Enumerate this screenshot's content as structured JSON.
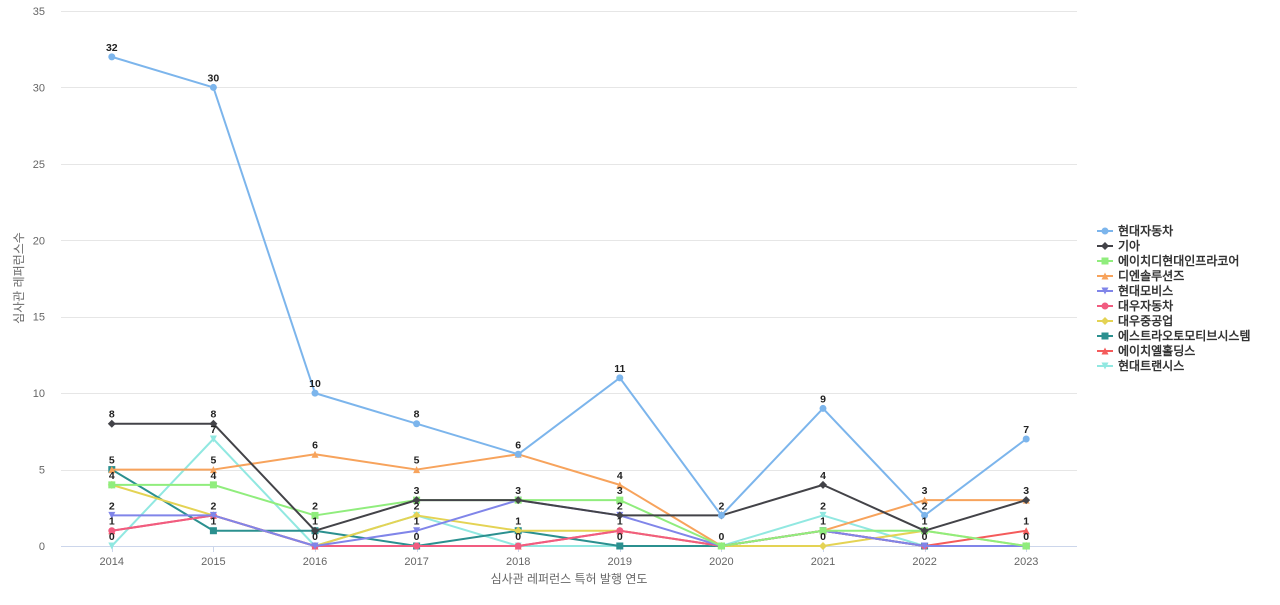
{
  "chart_data": {
    "type": "line",
    "title": "",
    "xlabel": "심사관 레퍼런스 특허 발행 연도",
    "ylabel": "심사관 레퍼런스수",
    "x": [
      "2014",
      "2015",
      "2016",
      "2017",
      "2018",
      "2019",
      "2020",
      "2021",
      "2022",
      "2023"
    ],
    "ylim": [
      0,
      35
    ],
    "yticks": [
      0,
      5,
      10,
      15,
      20,
      25,
      30,
      35
    ],
    "grid": true,
    "legend_position": "right",
    "series": [
      {
        "name": "현대자동차",
        "color": "#7cb5ec",
        "marker": "circle",
        "values": [
          32,
          30,
          10,
          8,
          6,
          11,
          2,
          9,
          2,
          7
        ]
      },
      {
        "name": "기아",
        "color": "#434348",
        "marker": "diamond",
        "values": [
          8,
          8,
          1,
          3,
          3,
          2,
          2,
          4,
          1,
          3
        ]
      },
      {
        "name": "에이치디현대인프라코어",
        "color": "#90ed7d",
        "marker": "square",
        "values": [
          4,
          4,
          2,
          3,
          3,
          3,
          0,
          1,
          1,
          0
        ]
      },
      {
        "name": "디엔솔루션즈",
        "color": "#f7a35c",
        "marker": "triangle",
        "values": [
          5,
          5,
          6,
          5,
          6,
          4,
          0,
          1,
          3,
          3
        ]
      },
      {
        "name": "현대모비스",
        "color": "#8085e9",
        "marker": "triangle-down",
        "values": [
          2,
          2,
          0,
          1,
          3,
          2,
          0,
          1,
          0,
          0
        ]
      },
      {
        "name": "대우자동차",
        "color": "#f15c80",
        "marker": "circle",
        "values": [
          1,
          2,
          0,
          0,
          0,
          1,
          0,
          1,
          0,
          0
        ]
      },
      {
        "name": "대우중공업",
        "color": "#e4d354",
        "marker": "diamond",
        "values": [
          4,
          2,
          0,
          2,
          1,
          1,
          0,
          0,
          1,
          0
        ]
      },
      {
        "name": "에스트라오토모티브시스템",
        "color": "#2b908f",
        "marker": "square",
        "values": [
          5,
          1,
          1,
          0,
          1,
          0,
          0,
          1,
          0,
          0
        ]
      },
      {
        "name": "에이치엘홀딩스",
        "color": "#f45b5b",
        "marker": "triangle",
        "values": [
          1,
          2,
          0,
          0,
          0,
          1,
          0,
          1,
          0,
          1
        ]
      },
      {
        "name": "현대트랜시스",
        "color": "#91e8e1",
        "marker": "triangle-down",
        "values": [
          0,
          7,
          0,
          2,
          0,
          0,
          0,
          2,
          0,
          0
        ]
      }
    ],
    "point_labels": [
      {
        "x": "2014",
        "labels": [
          "32",
          "8",
          "5",
          "4",
          "2",
          "1",
          "0"
        ]
      },
      {
        "x": "2015",
        "labels": [
          "30",
          "8",
          "7",
          "5",
          "4",
          "2",
          "1"
        ]
      },
      {
        "x": "2016",
        "labels": [
          "10",
          "6",
          "2",
          "1",
          "0"
        ]
      },
      {
        "x": "2017",
        "labels": [
          "8",
          "5",
          "3",
          "2",
          "1",
          "0"
        ]
      },
      {
        "x": "2018",
        "labels": [
          "6",
          "3",
          "1",
          "0"
        ]
      },
      {
        "x": "2019",
        "labels": [
          "11",
          "4",
          "3",
          "2",
          "1",
          "0"
        ]
      },
      {
        "x": "2020",
        "labels": [
          "2",
          "0"
        ]
      },
      {
        "x": "2021",
        "labels": [
          "9",
          "4",
          "2",
          "1",
          "0"
        ]
      },
      {
        "x": "2022",
        "labels": [
          "3",
          "2",
          "1",
          "0"
        ]
      },
      {
        "x": "2023",
        "labels": [
          "7",
          "3",
          "1",
          "0"
        ]
      }
    ]
  }
}
